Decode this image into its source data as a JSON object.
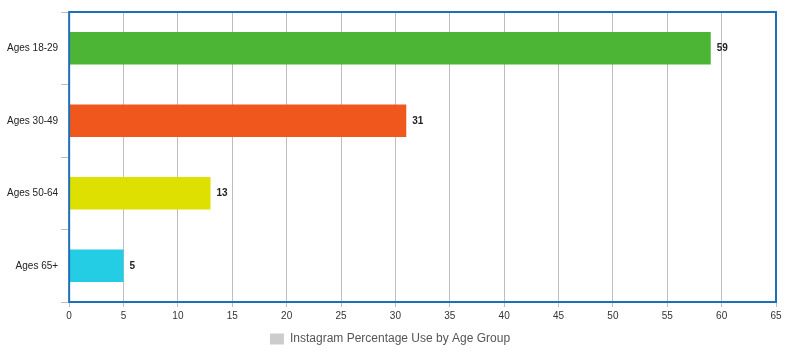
{
  "chart_data": {
    "type": "bar",
    "orientation": "horizontal",
    "categories": [
      "Ages 18-29",
      "Ages 30-49",
      "Ages 50-64",
      "Ages 65+"
    ],
    "series": [
      {
        "name": "Instagram Percentage Use by Age Group",
        "colors": [
          "#4db535",
          "#f0571d",
          "#dde000",
          "#24cce4"
        ],
        "values": [
          59,
          31,
          13,
          5
        ]
      }
    ],
    "xlim": [
      0,
      65
    ],
    "xticks": [
      0,
      5,
      10,
      15,
      20,
      25,
      30,
      35,
      40,
      45,
      50,
      55,
      60,
      65
    ],
    "grid": true,
    "legend": "bottom",
    "data_labels": true
  }
}
